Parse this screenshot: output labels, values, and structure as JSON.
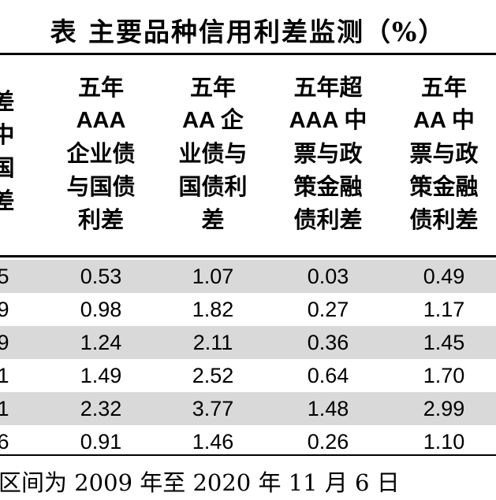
{
  "title": "表 主要品种信用利差监测（%）",
  "headers": [
    {
      "lines": [
        "差",
        "中",
        "国",
        "差"
      ]
    },
    {
      "lines": [
        "五年",
        "AAA",
        "企业债",
        "与国债",
        "利差"
      ]
    },
    {
      "lines": [
        "五年",
        "AA 企",
        "业债与",
        "国债利",
        "差"
      ]
    },
    {
      "lines": [
        "五年超",
        "AAA 中",
        "票与政",
        "策金融",
        "债利差"
      ]
    },
    {
      "lines": [
        "五年",
        "AA 中",
        "票与政",
        "策金融",
        "债利差"
      ]
    }
  ],
  "rows": [
    {
      "cells": [
        "5",
        "0.53",
        "1.07",
        "0.03",
        "0.49"
      ]
    },
    {
      "cells": [
        "9",
        "0.98",
        "1.82",
        "0.27",
        "1.17"
      ]
    },
    {
      "cells": [
        "9",
        "1.24",
        "2.11",
        "0.36",
        "1.45"
      ]
    },
    {
      "cells": [
        "1",
        "1.49",
        "2.52",
        "0.64",
        "1.70"
      ]
    },
    {
      "cells": [
        "1",
        "2.32",
        "3.77",
        "1.48",
        "2.99"
      ]
    },
    {
      "cells": [
        "6",
        "0.91",
        "1.46",
        "0.26",
        "1.10"
      ]
    }
  ],
  "footnote": "区间为 2009 年至 2020 年 11 月 6 日",
  "colors": {
    "shade": "#d9d9d9",
    "rule": "#000000"
  }
}
